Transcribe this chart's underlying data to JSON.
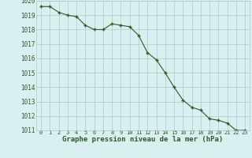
{
  "x": [
    0,
    1,
    2,
    3,
    4,
    5,
    6,
    7,
    8,
    9,
    10,
    11,
    12,
    13,
    14,
    15,
    16,
    17,
    18,
    19,
    20,
    21,
    22,
    23
  ],
  "y": [
    1019.6,
    1019.6,
    1019.2,
    1019.0,
    1018.9,
    1018.3,
    1018.0,
    1018.0,
    1018.4,
    1018.3,
    1018.2,
    1017.6,
    1016.4,
    1015.9,
    1015.0,
    1014.0,
    1013.1,
    1012.6,
    1012.4,
    1011.8,
    1011.7,
    1011.5,
    1011.0,
    1011.0
  ],
  "line_color": "#2d5a27",
  "marker_color": "#2d5a27",
  "bg_color": "#d8f0f0",
  "grid_color": "#b0c8c8",
  "xlabel": "Graphe pression niveau de la mer (hPa)",
  "xlabel_color": "#2d5a27",
  "tick_color": "#2d5a27",
  "ylim": [
    1011,
    1020
  ],
  "xlim": [
    -0.5,
    23.5
  ],
  "yticks": [
    1011,
    1012,
    1013,
    1014,
    1015,
    1016,
    1017,
    1018,
    1019,
    1020
  ],
  "xticks": [
    0,
    1,
    2,
    3,
    4,
    5,
    6,
    7,
    8,
    9,
    10,
    11,
    12,
    13,
    14,
    15,
    16,
    17,
    18,
    19,
    20,
    21,
    22,
    23
  ],
  "ytick_fontsize": 5.5,
  "xtick_fontsize": 5.0,
  "xlabel_fontsize": 6.5
}
